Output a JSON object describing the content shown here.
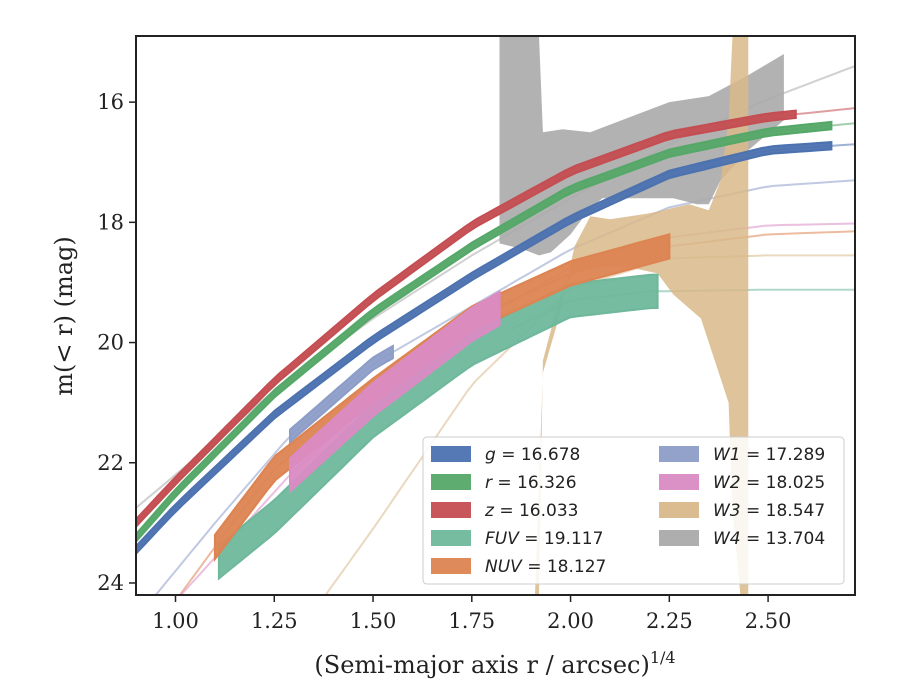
{
  "chart_data": {
    "type": "line",
    "title": "",
    "xlabel": "(Semi-major axis r / arcsec)",
    "xlabel_exponent": "1/4",
    "ylabel": "m(< r) (mag)",
    "xlim": [
      0.9,
      2.72
    ],
    "ylim": [
      24.2,
      14.9
    ],
    "y_inverted": true,
    "grid": false,
    "legend_position": "lower-right",
    "legend_columns": 2,
    "x_ticks": [
      "1.00",
      "1.25",
      "1.50",
      "1.75",
      "2.00",
      "2.25",
      "2.50"
    ],
    "y_ticks": [
      "16",
      "18",
      "20",
      "22",
      "24"
    ],
    "series": [
      {
        "name": "g",
        "label_value": "16.678",
        "color": "#4c72b0",
        "band_x": [
          0.9,
          2.66
        ],
        "band_width": 0.12,
        "model_extent": [
          0.9,
          2.72
        ],
        "curve_x": [
          0.9,
          1.0,
          1.25,
          1.5,
          1.75,
          2.0,
          2.25,
          2.5,
          2.72
        ],
        "curve_y": [
          23.45,
          22.75,
          21.2,
          19.95,
          18.9,
          17.95,
          17.2,
          16.8,
          16.7
        ]
      },
      {
        "name": "r",
        "label_value": "16.326",
        "color": "#55a868",
        "band_x": [
          0.9,
          2.66
        ],
        "band_width": 0.12,
        "model_extent": [
          0.9,
          2.72
        ],
        "curve_x": [
          0.9,
          1.0,
          1.25,
          1.5,
          1.75,
          2.0,
          2.25,
          2.5,
          2.72
        ],
        "curve_y": [
          23.25,
          22.5,
          20.85,
          19.5,
          18.4,
          17.45,
          16.85,
          16.5,
          16.35
        ]
      },
      {
        "name": "z",
        "label_value": "16.033",
        "color": "#c44e52",
        "band_x": [
          0.9,
          2.57
        ],
        "band_width": 0.12,
        "model_extent": [
          0.9,
          2.72
        ],
        "curve_x": [
          0.9,
          1.0,
          1.25,
          1.5,
          1.75,
          2.0,
          2.25,
          2.5,
          2.72
        ],
        "curve_y": [
          23.0,
          22.3,
          20.65,
          19.25,
          18.05,
          17.15,
          16.55,
          16.25,
          16.1
        ]
      },
      {
        "name": "FUV",
        "label_value": "19.117",
        "color": "#6fb89c",
        "band_x": [
          1.11,
          2.22
        ],
        "band_width": 0.55,
        "model_extent": [
          1.85,
          2.72
        ],
        "curve_x": [
          1.1,
          1.25,
          1.5,
          1.75,
          2.0,
          2.2,
          2.5,
          2.72
        ],
        "curve_y": [
          23.7,
          22.9,
          21.3,
          20.1,
          19.3,
          19.15,
          19.12,
          19.12
        ]
      },
      {
        "name": "NUV",
        "label_value": "18.127",
        "color": "#dd8452",
        "band_x": [
          1.1,
          2.25
        ],
        "band_width": 0.4,
        "model_extent": [
          1.0,
          2.72
        ],
        "curve_x": [
          1.0,
          1.1,
          1.25,
          1.5,
          1.75,
          2.0,
          2.25,
          2.5,
          2.72
        ],
        "curve_y": [
          24.3,
          23.4,
          22.1,
          20.8,
          19.6,
          18.85,
          18.4,
          18.2,
          18.15
        ]
      },
      {
        "name": "W1",
        "label_value": "17.289",
        "color": "#8c9dc8",
        "band_x": [
          1.29,
          1.55
        ],
        "band_width": 0.2,
        "model_extent": [
          0.95,
          2.72
        ],
        "curve_x": [
          0.95,
          1.1,
          1.29,
          1.5,
          1.75,
          2.0,
          2.25,
          2.5,
          2.72
        ],
        "curve_y": [
          24.2,
          23.0,
          21.55,
          20.35,
          19.4,
          18.45,
          17.75,
          17.4,
          17.3
        ]
      },
      {
        "name": "W2",
        "label_value": "18.025",
        "color": "#da8bc3",
        "band_x": [
          1.29,
          1.82
        ],
        "band_width": 0.55,
        "model_extent": [
          1.0,
          2.72
        ],
        "curve_x": [
          1.0,
          1.29,
          1.5,
          1.75,
          2.0,
          2.25,
          2.5,
          2.72
        ],
        "curve_y": [
          24.3,
          22.2,
          20.95,
          19.7,
          18.75,
          18.25,
          18.05,
          18.02
        ]
      },
      {
        "name": "W3",
        "label_value": "18.547",
        "color": "#d8b88a",
        "band_x": [
          1.82,
          2.45
        ],
        "band_width": 0,
        "model_extent": [
          1.38,
          2.72
        ],
        "curve_x": [
          1.38,
          1.5,
          1.75,
          2.0,
          2.25,
          2.5,
          2.72
        ],
        "curve_y": [
          24.2,
          23.1,
          20.7,
          19.1,
          18.6,
          18.55,
          18.55
        ]
      },
      {
        "name": "W4",
        "label_value": "13.704",
        "color": "#aaaaaa",
        "band_x": [
          1.82,
          2.54
        ],
        "band_width": 0,
        "model_extent": [
          0.9,
          2.72
        ],
        "curve_x": [
          0.9,
          1.0,
          1.25,
          1.5,
          1.75,
          2.0,
          2.25,
          2.5,
          2.72
        ],
        "curve_y": [
          22.75,
          22.2,
          20.8,
          19.6,
          18.55,
          17.6,
          16.7,
          15.95,
          15.4
        ]
      }
    ],
    "w3_band": {
      "upper": [
        [
          1.82,
          24.2
        ],
        [
          1.91,
          24.2
        ],
        [
          1.93,
          20.5
        ],
        [
          2.0,
          19.5
        ],
        [
          2.2,
          18.9
        ],
        [
          2.35,
          18.7
        ],
        [
          2.4,
          18.5
        ],
        [
          2.42,
          14.9
        ],
        [
          2.45,
          14.9
        ],
        [
          2.45,
          24.2
        ]
      ],
      "lower": []
    },
    "w3_outline": [
      [
        1.91,
        24.2
      ],
      [
        1.93,
        20.5
      ],
      [
        1.97,
        19.6
      ],
      [
        2.01,
        18.4
      ],
      [
        2.05,
        17.9
      ],
      [
        2.1,
        17.95
      ],
      [
        2.2,
        17.85
      ],
      [
        2.3,
        17.7
      ],
      [
        2.35,
        17.8
      ],
      [
        2.38,
        17.3
      ],
      [
        2.4,
        16.3
      ],
      [
        2.41,
        14.9
      ],
      [
        2.45,
        14.9
      ],
      [
        2.45,
        24.2
      ],
      [
        2.43,
        24.2
      ],
      [
        2.41,
        22.8
      ],
      [
        2.4,
        21.0
      ],
      [
        2.36,
        20.2
      ],
      [
        2.33,
        19.6
      ],
      [
        2.26,
        19.2
      ],
      [
        2.22,
        18.85
      ],
      [
        2.15,
        18.75
      ],
      [
        2.05,
        18.75
      ],
      [
        2.0,
        18.9
      ],
      [
        1.97,
        19.3
      ],
      [
        1.93,
        20.3
      ],
      [
        1.92,
        24.2
      ]
    ],
    "w4_outline": [
      [
        1.82,
        24.2
      ],
      [
        1.82,
        14.9
      ],
      [
        1.92,
        14.9
      ],
      [
        1.93,
        16.5
      ],
      [
        1.98,
        16.45
      ],
      [
        2.05,
        16.5
      ],
      [
        2.15,
        16.25
      ],
      [
        2.25,
        16.0
      ],
      [
        2.35,
        15.9
      ],
      [
        2.45,
        15.55
      ],
      [
        2.54,
        15.2
      ],
      [
        2.54,
        16.3
      ],
      [
        2.45,
        16.8
      ],
      [
        2.38,
        17.3
      ],
      [
        2.35,
        17.7
      ],
      [
        2.32,
        17.7
      ],
      [
        2.26,
        17.6
      ],
      [
        2.15,
        17.6
      ],
      [
        2.08,
        17.6
      ],
      [
        2.04,
        17.85
      ],
      [
        2.0,
        18.2
      ],
      [
        1.95,
        18.5
      ],
      [
        1.92,
        18.55
      ],
      [
        1.88,
        18.45
      ],
      [
        1.82,
        18.35
      ]
    ]
  }
}
